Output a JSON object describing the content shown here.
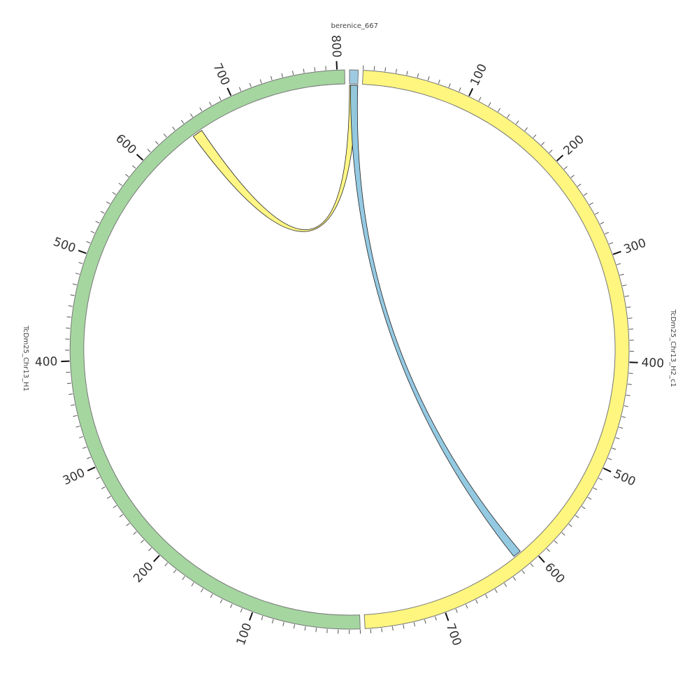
{
  "chart_data": {
    "type": "chord",
    "minor_tick_interval": 10,
    "sectors": [
      {
        "name": "berenice_667",
        "length": 8,
        "color": "#9ecae1",
        "ticks": []
      },
      {
        "name": "TcDm25_Chr13_H2_c1",
        "length": 775,
        "color": "#fff67f",
        "ticks": [
          100,
          200,
          300,
          400,
          500,
          600,
          700
        ]
      },
      {
        "name": "TcDm25_Chr13_H1",
        "length": 807,
        "color": "#a5d6a0",
        "ticks": [
          100,
          200,
          300,
          400,
          500,
          600,
          700,
          800
        ]
      }
    ],
    "links": [
      {
        "source": {
          "sector": 0,
          "start": 0,
          "end": 7
        },
        "target": {
          "sector": 2,
          "start": 650,
          "end": 660
        },
        "color": "#fff67f"
      },
      {
        "source": {
          "sector": 0,
          "start": 1,
          "end": 8
        },
        "target": {
          "sector": 1,
          "start": 610,
          "end": 618
        },
        "color": "#8ec6e0"
      }
    ]
  }
}
